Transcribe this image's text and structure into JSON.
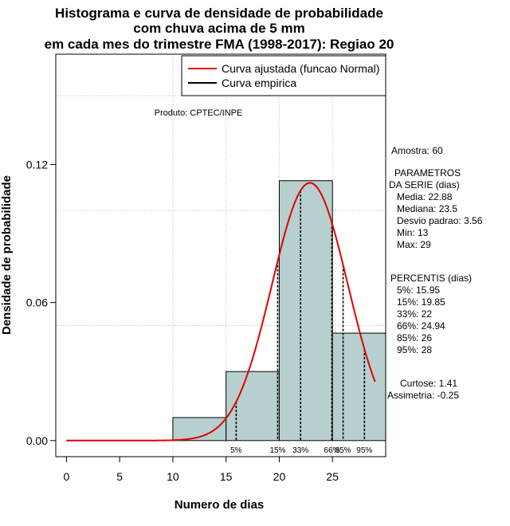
{
  "chart_data": {
    "type": "bar",
    "title": "Histograma e curva de densidade de probabilidade",
    "title_lines": [
      "Histograma e curva de densidade de probabilidade",
      "com chuva acima de 5 mm",
      "em cada mes do trimestre FMA (1998-2017): Regiao 20"
    ],
    "xlabel": "Numero de dias",
    "ylabel": "Densidade de probabilidade",
    "xlim": [
      -1,
      30
    ],
    "ylim": [
      -0.007,
      0.168
    ],
    "x_ticks": [
      0,
      5,
      10,
      15,
      20,
      25
    ],
    "y_ticks": [
      0.0,
      0.06,
      0.12
    ],
    "y_tick_labels": [
      "0.00",
      "0.06",
      "0.12"
    ],
    "grid": true,
    "grid_x": [
      10,
      15,
      20,
      25
    ],
    "grid_y": [
      0.05,
      0.1,
      0.15
    ],
    "bins": [
      {
        "start": 10,
        "end": 15,
        "density": 0.01
      },
      {
        "start": 15,
        "end": 20,
        "density": 0.03
      },
      {
        "start": 20,
        "end": 25,
        "density": 0.113
      },
      {
        "start": 25,
        "end": 30,
        "density": 0.0467
      }
    ],
    "bar_color": "#b7cfcf",
    "normal_fit": {
      "mean": 22.88,
      "sd": 3.56,
      "x_start": 0,
      "x_end": 29,
      "color": "#e00000"
    },
    "percentile_lines": [
      {
        "value": 15.95,
        "label": "5%"
      },
      {
        "value": 19.85,
        "label": "15%"
      },
      {
        "value": 22,
        "label": "33%"
      },
      {
        "value": 24.94,
        "label": "66%"
      },
      {
        "value": 26,
        "label": "85%"
      },
      {
        "value": 28,
        "label": "95%"
      }
    ],
    "legend": {
      "placement": "top-right",
      "entries": [
        {
          "label": "Curva ajustada (funcao Normal)",
          "color": "#e00000"
        },
        {
          "label": "Curva empirica",
          "color": "#000000"
        }
      ]
    },
    "credit": "Produto: CPTEC/INPE",
    "side_text": {
      "sample": "Amostra: 60",
      "params_title_1": "PARAMETROS",
      "params_title_2": "DA SERIE (dias)",
      "params": [
        "Media: 22.88",
        "Mediana: 23.5",
        "Desvio padrao: 3.56",
        "Min: 13",
        "Max: 29"
      ],
      "percentis_title": "PERCENTIS (dias)",
      "percentis": [
        "5%: 15.95",
        "15%: 19.85",
        "33%: 22",
        "66%: 24.94",
        "85%: 26",
        "95%: 28"
      ],
      "curtose": "Curtose: 1.41",
      "assimetria": "Assimetria: -0.25"
    }
  }
}
